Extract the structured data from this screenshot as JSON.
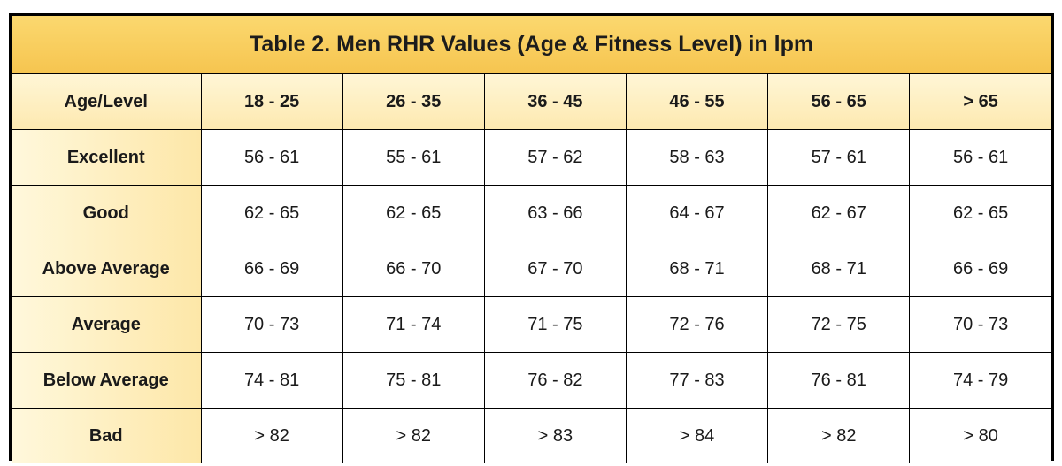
{
  "title": "Table 2. Men RHR Values (Age & Fitness Level) in lpm",
  "columns": [
    "Age/Level",
    "18 - 25",
    "26 - 35",
    "36 - 45",
    "46 - 55",
    "56 - 65",
    "> 65"
  ],
  "rows": [
    {
      "label": "Excellent",
      "values": [
        "56 - 61",
        "55 - 61",
        "57 - 62",
        "58 - 63",
        "57 - 61",
        "56 - 61"
      ]
    },
    {
      "label": "Good",
      "values": [
        "62 - 65",
        "62 - 65",
        "63 - 66",
        "64 - 67",
        "62 - 67",
        "62 - 65"
      ]
    },
    {
      "label": "Above Average",
      "values": [
        "66 - 69",
        "66 - 70",
        "67 - 70",
        "68 - 71",
        "68 - 71",
        "66 - 69"
      ]
    },
    {
      "label": "Average",
      "values": [
        "70 - 73",
        "71 - 74",
        "71 - 75",
        "72 - 76",
        "72 - 75",
        "70 - 73"
      ]
    },
    {
      "label": "Below Average",
      "values": [
        "74 - 81",
        "75 - 81",
        "76 - 82",
        "77 - 83",
        "76 - 81",
        "74 - 79"
      ]
    },
    {
      "label": "Bad",
      "values": [
        "> 82",
        "> 82",
        "> 83",
        "> 84",
        "> 82",
        "> 80"
      ]
    }
  ],
  "colors": {
    "title_bg": "#f6c550",
    "header_bg": "#fde9b0",
    "border": "#000000"
  }
}
